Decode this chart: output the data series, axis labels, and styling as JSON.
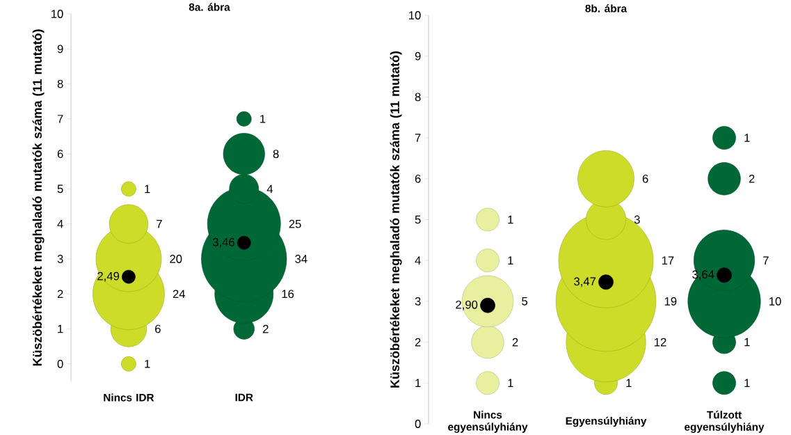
{
  "chart_data": [
    {
      "type": "bubble",
      "title": "8a. ábra",
      "ylabel": "Küszöbértékeket meghaladó mutatók száma (11 mutató)",
      "categories": [
        "Nincs IDR",
        "IDR"
      ],
      "ylim": [
        -0.5,
        10
      ],
      "yticks": [
        0,
        1,
        2,
        3,
        4,
        5,
        6,
        7,
        8,
        9,
        10
      ],
      "series": [
        {
          "type": "bubble",
          "color": "#cddc29",
          "x": [
            "Nincs IDR",
            "Nincs IDR",
            "Nincs IDR",
            "Nincs IDR",
            "Nincs IDR",
            "Nincs IDR"
          ],
          "values": [
            0,
            1,
            2,
            3,
            4,
            5
          ],
          "sizes": [
            1,
            6,
            24,
            20,
            7,
            1
          ],
          "value_labels": [
            "1",
            "6",
            "24",
            "20",
            "7",
            "1"
          ]
        },
        {
          "type": "bubble",
          "color": "#006837",
          "x": [
            "IDR",
            "IDR",
            "IDR",
            "IDR",
            "IDR",
            "IDR",
            "IDR"
          ],
          "values": [
            1,
            2,
            3,
            4,
            5,
            6,
            7
          ],
          "sizes": [
            2,
            16,
            34,
            25,
            4,
            8,
            1
          ],
          "value_labels": [
            "2",
            "16",
            "34",
            "25",
            "4",
            "8",
            "1"
          ]
        },
        {
          "type": "scatter",
          "color": "#000000",
          "x": [
            "Nincs IDR",
            "IDR"
          ],
          "values": [
            2.49,
            3.46
          ],
          "value_labels": [
            "2,49",
            "3,46"
          ]
        }
      ]
    },
    {
      "type": "bubble",
      "title": "8b. ábra",
      "ylabel": "Küszöbértékeket meghaladó mutatók száma (11 mutató)",
      "categories": [
        "Nincs egyensúlyhiány",
        "Egyensúlyhiány",
        "Túlzott egyensúlyhiány"
      ],
      "ylim": [
        0,
        10
      ],
      "yticks": [
        0,
        1,
        2,
        3,
        4,
        5,
        6,
        7,
        8,
        9,
        10
      ],
      "series": [
        {
          "type": "bubble",
          "color": "#e8f0a0",
          "x": [
            "Nincs egyensúlyhiány",
            "Nincs egyensúlyhiány",
            "Nincs egyensúlyhiány",
            "Nincs egyensúlyhiány",
            "Nincs egyensúlyhiány"
          ],
          "values": [
            1,
            2,
            3,
            4,
            5
          ],
          "sizes": [
            1,
            2,
            5,
            1,
            1
          ],
          "value_labels": [
            "1",
            "2",
            "5",
            "1",
            "1"
          ]
        },
        {
          "type": "bubble",
          "color": "#cddc29",
          "x": [
            "Egyensúlyhiány",
            "Egyensúlyhiány",
            "Egyensúlyhiány",
            "Egyensúlyhiány",
            "Egyensúlyhiány",
            "Egyensúlyhiány"
          ],
          "values": [
            1,
            2,
            3,
            4,
            5,
            6
          ],
          "sizes": [
            1,
            12,
            19,
            17,
            3,
            6
          ],
          "value_labels": [
            "1",
            "12",
            "19",
            "17",
            "3",
            "6"
          ]
        },
        {
          "type": "bubble",
          "color": "#006837",
          "x": [
            "Túlzott egyensúlyhiány",
            "Túlzott egyensúlyhiány",
            "Túlzott egyensúlyhiány",
            "Túlzott egyensúlyhiány",
            "Túlzott egyensúlyhiány",
            "Túlzott egyensúlyhiány"
          ],
          "values": [
            1,
            2,
            3,
            4,
            6,
            7
          ],
          "sizes": [
            1,
            1,
            10,
            7,
            2,
            1
          ],
          "value_labels": [
            "1",
            "1",
            "10",
            "7",
            "2",
            "1"
          ]
        },
        {
          "type": "scatter",
          "color": "#000000",
          "x": [
            "Nincs egyensúlyhiány",
            "Egyensúlyhiány",
            "Túlzott egyensúlyhiány"
          ],
          "values": [
            2.9,
            3.47,
            3.64
          ],
          "value_labels": [
            "2,90",
            "3,47",
            "3,64"
          ]
        }
      ]
    }
  ]
}
